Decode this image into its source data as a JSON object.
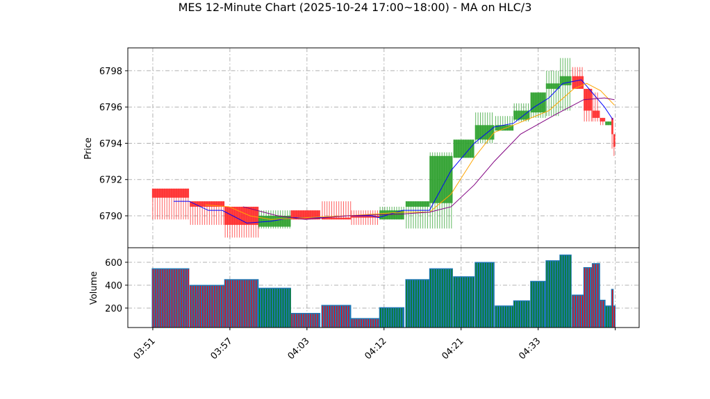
{
  "chart_data": {
    "type": "candlestick",
    "title": "MES 12-Minute Chart (2025-10-24 17:00~18:00) - MA on HLC/3",
    "price_panel": {
      "ylabel": "Price",
      "ylim": [
        6788.24,
        6799.26
      ],
      "yticks": [
        6790,
        6792,
        6794,
        6796,
        6798
      ],
      "grid": true
    },
    "volume_panel": {
      "ylabel": "Volume",
      "ylim": [
        30,
        727
      ],
      "yticks": [
        200,
        400,
        600
      ],
      "grid": true
    },
    "xlim": [
      -3.24,
      63.1
    ],
    "xticks": [
      {
        "pos": 0,
        "label": "03:51"
      },
      {
        "pos": 10,
        "label": "03:57"
      },
      {
        "pos": 20,
        "label": "04:03"
      },
      {
        "pos": 30,
        "label": "04:12"
      },
      {
        "pos": 40,
        "label": "04:21"
      },
      {
        "pos": 50,
        "label": "04:33"
      },
      {
        "pos": 60,
        "label": ""
      }
    ],
    "colors": {
      "up": "#2ca02c",
      "down": "#ff2a2a",
      "volume": "#1f77b4",
      "ma_fast": "#0000ff",
      "ma_mid": "#ffa500",
      "ma_slow": "#800080",
      "grid": "#b0b0b0"
    },
    "bars": [
      {
        "start": -0.1,
        "end": 4.7,
        "open": 6791.5,
        "close": 6791.0,
        "high": 6791.5,
        "low": 6789.8,
        "volume": 545
      },
      {
        "start": 4.8,
        "end": 9.3,
        "open": 6790.8,
        "close": 6790.5,
        "high": 6790.8,
        "low": 6789.5,
        "volume": 400
      },
      {
        "start": 9.3,
        "end": 13.7,
        "open": 6790.5,
        "close": 6789.5,
        "high": 6790.5,
        "low": 6788.8,
        "volume": 450
      },
      {
        "start": 13.7,
        "end": 17.9,
        "open": 6789.4,
        "close": 6790.0,
        "high": 6790.3,
        "low": 6789.3,
        "volume": 375
      },
      {
        "start": 17.9,
        "end": 21.7,
        "open": 6790.3,
        "close": 6789.8,
        "high": 6790.3,
        "low": 6789.8,
        "volume": 155
      },
      {
        "start": 21.9,
        "end": 25.7,
        "open": 6789.9,
        "close": 6789.8,
        "high": 6790.8,
        "low": 6789.8,
        "volume": 225
      },
      {
        "start": 25.7,
        "end": 29.4,
        "open": 6790.0,
        "close": 6789.9,
        "high": 6790.3,
        "low": 6789.5,
        "volume": 110
      },
      {
        "start": 29.4,
        "end": 32.6,
        "open": 6789.8,
        "close": 6790.3,
        "high": 6790.5,
        "low": 6789.8,
        "volume": 205
      },
      {
        "start": 32.8,
        "end": 35.9,
        "open": 6790.5,
        "close": 6790.8,
        "high": 6790.8,
        "low": 6789.3,
        "volume": 450
      },
      {
        "start": 35.9,
        "end": 38.9,
        "open": 6790.7,
        "close": 6793.3,
        "high": 6793.5,
        "low": 6789.3,
        "volume": 545
      },
      {
        "start": 39.0,
        "end": 41.7,
        "open": 6793.2,
        "close": 6794.2,
        "high": 6794.2,
        "low": 6793.2,
        "volume": 475
      },
      {
        "start": 41.8,
        "end": 44.3,
        "open": 6794.2,
        "close": 6795.0,
        "high": 6795.7,
        "low": 6794.0,
        "volume": 600
      },
      {
        "start": 44.4,
        "end": 46.8,
        "open": 6794.7,
        "close": 6795.0,
        "high": 6795.5,
        "low": 6794.7,
        "volume": 220
      },
      {
        "start": 46.8,
        "end": 48.9,
        "open": 6795.3,
        "close": 6795.8,
        "high": 6796.2,
        "low": 6795.2,
        "volume": 265
      },
      {
        "start": 49.0,
        "end": 51.0,
        "open": 6795.7,
        "close": 6796.8,
        "high": 6796.8,
        "low": 6795.4,
        "volume": 435
      },
      {
        "start": 51.0,
        "end": 52.8,
        "open": 6797.0,
        "close": 6797.3,
        "high": 6798.0,
        "low": 6795.5,
        "volume": 615
      },
      {
        "start": 52.8,
        "end": 54.3,
        "open": 6797.2,
        "close": 6797.7,
        "high": 6798.7,
        "low": 6795.8,
        "volume": 665
      },
      {
        "start": 54.4,
        "end": 55.9,
        "open": 6797.7,
        "close": 6797.0,
        "high": 6798.2,
        "low": 6797.0,
        "volume": 315
      },
      {
        "start": 55.9,
        "end": 57.0,
        "open": 6797.0,
        "close": 6795.8,
        "high": 6797.0,
        "low": 6795.2,
        "volume": 555
      },
      {
        "start": 57.0,
        "end": 58.0,
        "open": 6795.8,
        "close": 6795.4,
        "high": 6796.8,
        "low": 6795.2,
        "volume": 590
      },
      {
        "start": 58.0,
        "end": 58.7,
        "open": 6795.4,
        "close": 6795.2,
        "high": 6795.4,
        "low": 6795.0,
        "volume": 270
      },
      {
        "start": 58.7,
        "end": 59.5,
        "open": 6795.0,
        "close": 6795.2,
        "high": 6795.2,
        "low": 6795.0,
        "volume": 220
      },
      {
        "start": 59.5,
        "end": 59.75,
        "open": 6795.4,
        "close": 6794.5,
        "high": 6795.4,
        "low": 6793.7,
        "volume": 365
      },
      {
        "start": 59.75,
        "end": 60.0,
        "open": 6794.5,
        "close": 6793.8,
        "high": 6794.5,
        "low": 6793.3,
        "volume": 220
      }
    ],
    "moving_averages": [
      {
        "name": "MA fast",
        "color": "#0000ff",
        "points": [
          [
            2.7,
            6790.8
          ],
          [
            4.7,
            6790.8
          ],
          [
            7.2,
            6790.3
          ],
          [
            9.0,
            6790.3
          ],
          [
            12.2,
            6789.6
          ],
          [
            15.3,
            6789.7
          ],
          [
            18.0,
            6789.9
          ],
          [
            21.6,
            6789.9
          ],
          [
            25.2,
            6790.0
          ],
          [
            28.4,
            6790.0
          ],
          [
            29.3,
            6789.9
          ],
          [
            32.4,
            6790.3
          ],
          [
            35.9,
            6790.3
          ],
          [
            38.7,
            6792.5
          ],
          [
            41.7,
            6794.0
          ],
          [
            44.3,
            6794.9
          ],
          [
            46.8,
            6795.1
          ],
          [
            49.5,
            6796.0
          ],
          [
            51.4,
            6796.5
          ],
          [
            53.2,
            6797.3
          ],
          [
            55.6,
            6797.5
          ],
          [
            58.6,
            6796.0
          ],
          [
            59.7,
            6795.3
          ]
        ]
      },
      {
        "name": "MA mid",
        "color": "#ffa500",
        "points": [
          [
            6.8,
            6790.6
          ],
          [
            9.9,
            6790.5
          ],
          [
            12.6,
            6790.0
          ],
          [
            15.3,
            6789.8
          ],
          [
            19.8,
            6789.9
          ],
          [
            25.2,
            6790.0
          ],
          [
            32.4,
            6790.2
          ],
          [
            35.9,
            6790.2
          ],
          [
            38.7,
            6791.2
          ],
          [
            41.7,
            6793.2
          ],
          [
            44.3,
            6794.6
          ],
          [
            46.8,
            6795.0
          ],
          [
            51.4,
            6795.8
          ],
          [
            54.6,
            6797.0
          ],
          [
            56.3,
            6797.3
          ],
          [
            58.1,
            6796.9
          ],
          [
            59.9,
            6796.1
          ]
        ]
      },
      {
        "name": "MA slow",
        "color": "#800080",
        "points": [
          [
            11.7,
            6790.5
          ],
          [
            16.2,
            6790.0
          ],
          [
            19.8,
            6789.8
          ],
          [
            25.2,
            6790.0
          ],
          [
            32.4,
            6790.1
          ],
          [
            35.9,
            6790.2
          ],
          [
            38.7,
            6790.5
          ],
          [
            41.7,
            6791.7
          ],
          [
            44.3,
            6793.0
          ],
          [
            47.7,
            6794.5
          ],
          [
            52.3,
            6795.6
          ],
          [
            55.9,
            6796.4
          ],
          [
            58.6,
            6796.5
          ],
          [
            59.9,
            6796.4
          ]
        ]
      }
    ]
  }
}
